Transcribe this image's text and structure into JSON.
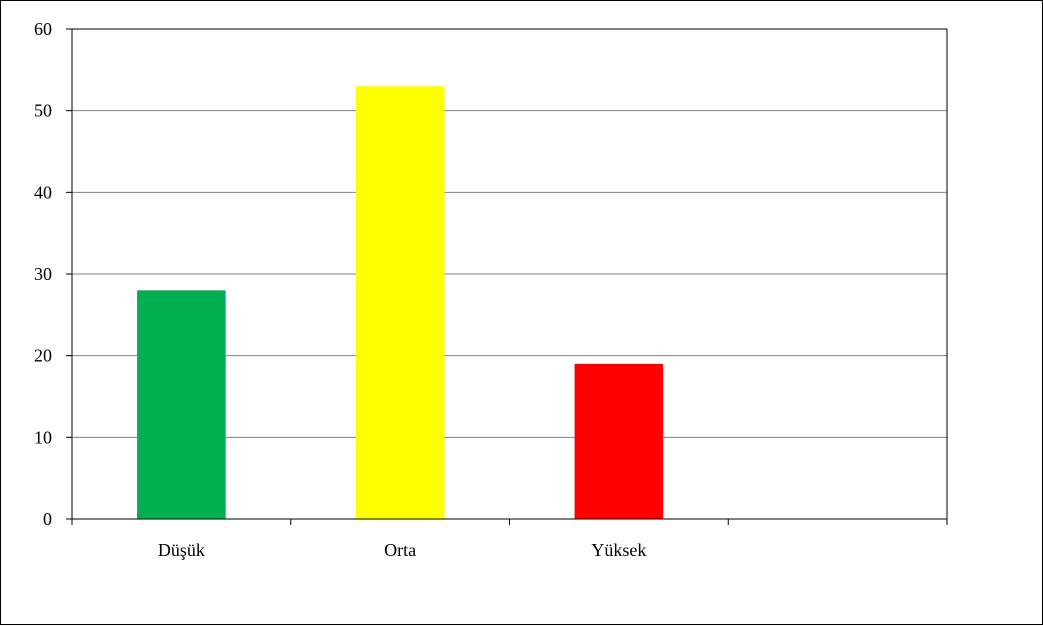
{
  "chart_data": {
    "type": "bar",
    "categories": [
      "Düşük",
      "Orta",
      "Yüksek",
      ""
    ],
    "values": [
      28,
      53,
      19,
      null
    ],
    "colors": [
      "#00b050",
      "#ffff00",
      "#ff0000",
      null
    ],
    "ylim": [
      0,
      60
    ],
    "yticks": [
      0,
      10,
      20,
      30,
      40,
      50,
      60
    ],
    "grid": true,
    "legend": "none",
    "title": "",
    "xlabel": "",
    "ylabel": ""
  }
}
